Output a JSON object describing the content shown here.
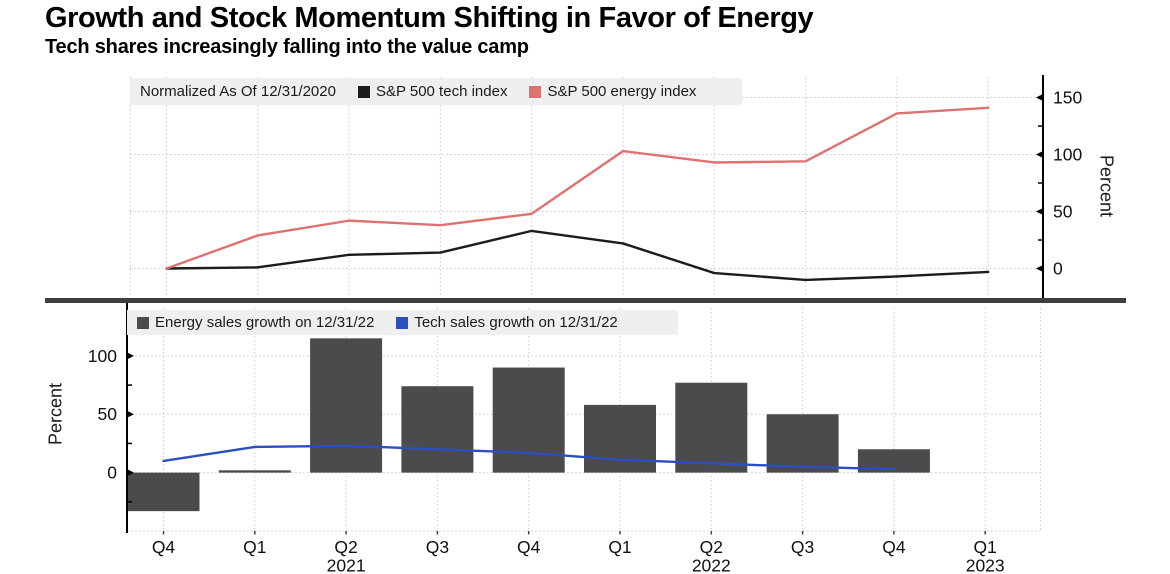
{
  "header": {
    "title": "Growth and Stock Momentum Shifting in Favor of Energy",
    "subtitle": "Tech shares increasingly falling into the value camp"
  },
  "x_axis": {
    "categories": [
      {
        "label": "Q4"
      },
      {
        "label": "Q1"
      },
      {
        "label": "Q2",
        "year": "2021"
      },
      {
        "label": "Q3"
      },
      {
        "label": "Q4"
      },
      {
        "label": "Q1"
      },
      {
        "label": "Q2",
        "year": "2022"
      },
      {
        "label": "Q3"
      },
      {
        "label": "Q4"
      },
      {
        "label": "Q1",
        "year": "2023"
      }
    ]
  },
  "chart_data": [
    {
      "panel": "top",
      "type": "line",
      "legend_note": "Normalized As Of 12/31/2020",
      "series": [
        {
          "name": "S&P 500 tech index",
          "type": "line",
          "color": "#1c1c1c",
          "values": [
            0,
            1,
            12,
            14,
            33,
            22,
            -4,
            -10,
            -7,
            -3
          ]
        },
        {
          "name": "S&P 500 energy index",
          "type": "line",
          "color": "#dd7370",
          "values": [
            0,
            29,
            42,
            38,
            48,
            103,
            93,
            94,
            136,
            141
          ]
        }
      ],
      "ylabel": "Percent",
      "yticks": [
        0,
        50,
        100,
        150
      ],
      "ylim": [
        -25,
        168
      ],
      "y_axis_side": "right",
      "grid": "dotted"
    },
    {
      "panel": "bottom",
      "type": "bar+line",
      "series": [
        {
          "name": "Energy sales growth on 12/31/22",
          "type": "bar",
          "color": "#4b4b4d",
          "values": [
            -33,
            2,
            115,
            74,
            90,
            58,
            77,
            50,
            20,
            null
          ]
        },
        {
          "name": "Tech sales growth on 12/31/22",
          "type": "line",
          "color": "#2a4fc2",
          "values": [
            10,
            22,
            23,
            20,
            17,
            11,
            8,
            5,
            3,
            null
          ]
        }
      ],
      "ylabel": "Percent",
      "yticks": [
        0,
        50,
        100
      ],
      "ylim": [
        -50,
        141
      ],
      "extra_gridlines": [
        -50
      ],
      "y_axis_side": "left",
      "grid": "dotted"
    }
  ],
  "colors": {
    "tech_line": "#1c1c1c",
    "energy_line": "#dd7370",
    "energy_bar": "#4b4b4d",
    "tech_sales_line": "#2a4fc2",
    "legend_background": "#efefef",
    "gridline": "#cbcbcb",
    "divider": "#3e3e40"
  }
}
